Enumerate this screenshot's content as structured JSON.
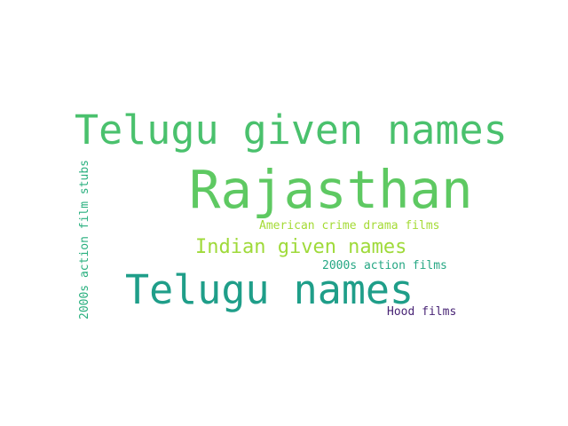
{
  "words": [
    {
      "text": "Rajasthan",
      "color": "#5ec962"
    },
    {
      "text": "Telugu given names",
      "color": "#4ac16d"
    },
    {
      "text": "Telugu names",
      "color": "#1f9e89"
    },
    {
      "text": "Indian given names",
      "color": "#9fda3a"
    },
    {
      "text": "American crime drama films",
      "color": "#a5db36"
    },
    {
      "text": "2000s action films",
      "color": "#26a784"
    },
    {
      "text": "Hood films",
      "color": "#482475"
    },
    {
      "text": "2000s action film stubs",
      "color": "#2ab07f"
    }
  ]
}
